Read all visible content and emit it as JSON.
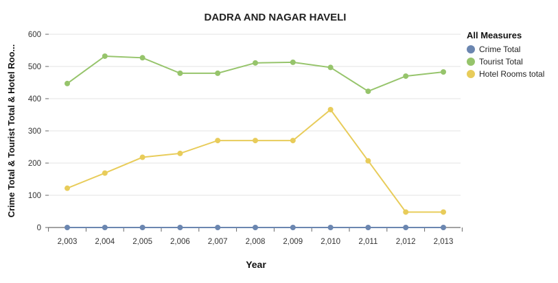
{
  "chart_data": {
    "type": "line",
    "title": "DADRA AND NAGAR HAVELI",
    "xlabel": "Year",
    "ylabel": "Crime Total & Tourist Total & Hotel Roo...",
    "categories": [
      "2,003",
      "2,004",
      "2,005",
      "2,006",
      "2,007",
      "2,008",
      "2,009",
      "2,010",
      "2,011",
      "2,012",
      "2,013"
    ],
    "ylim": [
      0,
      600
    ],
    "yticks": [
      "0",
      "100",
      "200",
      "300",
      "400",
      "500",
      "600"
    ],
    "grid": true,
    "legend_title": "All Measures",
    "legend_position": "right",
    "series": [
      {
        "name": "Crime Total",
        "color": "#6b86b0",
        "values": [
          0,
          0,
          0,
          0,
          0,
          0,
          0,
          0,
          0,
          0,
          0
        ]
      },
      {
        "name": "Tourist Total",
        "color": "#96c46b",
        "values": [
          447,
          532,
          527,
          479,
          479,
          511,
          513,
          497,
          423,
          470,
          483
        ]
      },
      {
        "name": "Hotel Rooms total",
        "color": "#e8cc5a",
        "values": [
          122,
          169,
          218,
          230,
          270,
          270,
          270,
          366,
          207,
          48,
          48
        ]
      }
    ]
  }
}
